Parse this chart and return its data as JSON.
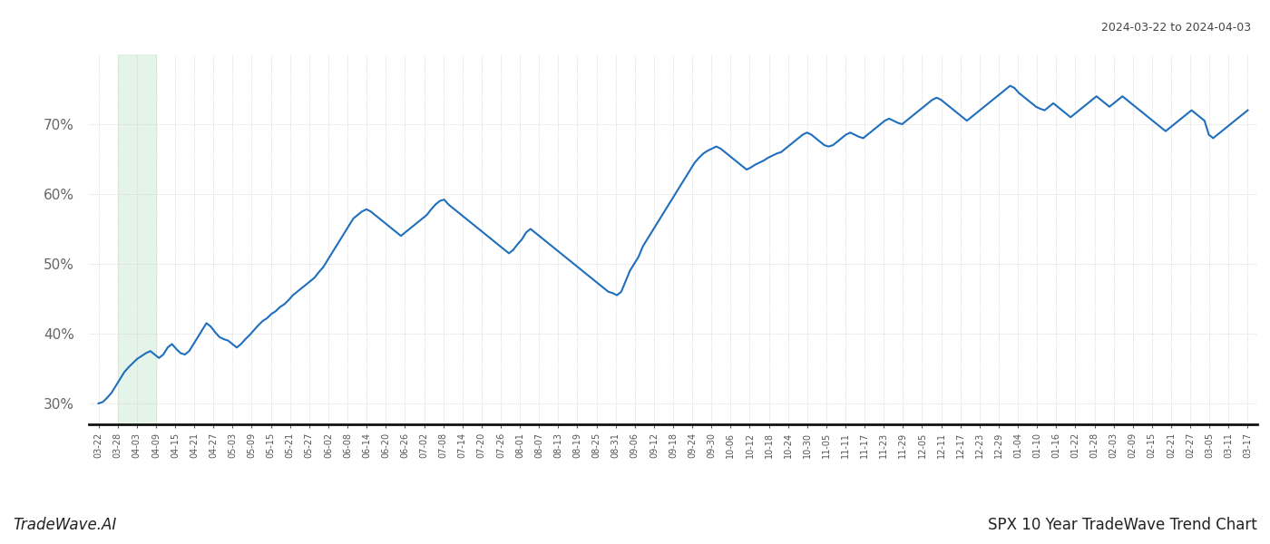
{
  "title_top_right": "2024-03-22 to 2024-04-03",
  "title_bottom_right": "SPX 10 Year TradeWave Trend Chart",
  "title_bottom_left": "TradeWave.AI",
  "line_color": "#1f6fbd",
  "line_width": 1.5,
  "highlight_color": "#d4edda",
  "highlight_alpha": 0.6,
  "background_color": "#ffffff",
  "grid_color": "#cccccc",
  "ylim": [
    27,
    80
  ],
  "yticks": [
    30,
    40,
    50,
    60,
    70
  ],
  "x_labels": [
    "03-22",
    "03-28",
    "04-03",
    "04-09",
    "04-15",
    "04-21",
    "04-27",
    "05-03",
    "05-09",
    "05-15",
    "05-21",
    "05-27",
    "06-02",
    "06-08",
    "06-14",
    "06-20",
    "06-26",
    "07-02",
    "07-08",
    "07-14",
    "07-20",
    "07-26",
    "08-01",
    "08-07",
    "08-13",
    "08-19",
    "08-25",
    "08-31",
    "09-06",
    "09-12",
    "09-18",
    "09-24",
    "09-30",
    "10-06",
    "10-12",
    "10-18",
    "10-24",
    "10-30",
    "11-05",
    "11-11",
    "11-17",
    "11-23",
    "11-29",
    "12-05",
    "12-11",
    "12-17",
    "12-23",
    "12-29",
    "01-04",
    "01-10",
    "01-16",
    "01-22",
    "01-28",
    "02-03",
    "02-09",
    "02-15",
    "02-21",
    "02-27",
    "03-05",
    "03-11",
    "03-17"
  ],
  "y_values": [
    30.0,
    30.2,
    30.8,
    31.5,
    32.5,
    33.5,
    34.5,
    35.2,
    35.8,
    36.4,
    36.8,
    37.2,
    37.5,
    37.0,
    36.5,
    37.0,
    38.0,
    38.5,
    37.8,
    37.2,
    37.0,
    37.5,
    38.5,
    39.5,
    40.5,
    41.5,
    41.0,
    40.2,
    39.5,
    39.2,
    39.0,
    38.5,
    38.0,
    38.5,
    39.2,
    39.8,
    40.5,
    41.2,
    41.8,
    42.2,
    42.8,
    43.2,
    43.8,
    44.2,
    44.8,
    45.5,
    46.0,
    46.5,
    47.0,
    47.5,
    48.0,
    48.8,
    49.5,
    50.5,
    51.5,
    52.5,
    53.5,
    54.5,
    55.5,
    56.5,
    57.0,
    57.5,
    57.8,
    57.5,
    57.0,
    56.5,
    56.0,
    55.5,
    55.0,
    54.5,
    54.0,
    54.5,
    55.0,
    55.5,
    56.0,
    56.5,
    57.0,
    57.8,
    58.5,
    59.0,
    59.2,
    58.5,
    58.0,
    57.5,
    57.0,
    56.5,
    56.0,
    55.5,
    55.0,
    54.5,
    54.0,
    53.5,
    53.0,
    52.5,
    52.0,
    51.5,
    52.0,
    52.8,
    53.5,
    54.5,
    55.0,
    54.5,
    54.0,
    53.5,
    53.0,
    52.5,
    52.0,
    51.5,
    51.0,
    50.5,
    50.0,
    49.5,
    49.0,
    48.5,
    48.0,
    47.5,
    47.0,
    46.5,
    46.0,
    45.8,
    45.5,
    46.0,
    47.5,
    49.0,
    50.0,
    51.0,
    52.5,
    53.5,
    54.5,
    55.5,
    56.5,
    57.5,
    58.5,
    59.5,
    60.5,
    61.5,
    62.5,
    63.5,
    64.5,
    65.2,
    65.8,
    66.2,
    66.5,
    66.8,
    66.5,
    66.0,
    65.5,
    65.0,
    64.5,
    64.0,
    63.5,
    63.8,
    64.2,
    64.5,
    64.8,
    65.2,
    65.5,
    65.8,
    66.0,
    66.5,
    67.0,
    67.5,
    68.0,
    68.5,
    68.8,
    68.5,
    68.0,
    67.5,
    67.0,
    66.8,
    67.0,
    67.5,
    68.0,
    68.5,
    68.8,
    68.5,
    68.2,
    68.0,
    68.5,
    69.0,
    69.5,
    70.0,
    70.5,
    70.8,
    70.5,
    70.2,
    70.0,
    70.5,
    71.0,
    71.5,
    72.0,
    72.5,
    73.0,
    73.5,
    73.8,
    73.5,
    73.0,
    72.5,
    72.0,
    71.5,
    71.0,
    70.5,
    71.0,
    71.5,
    72.0,
    72.5,
    73.0,
    73.5,
    74.0,
    74.5,
    75.0,
    75.5,
    75.2,
    74.5,
    74.0,
    73.5,
    73.0,
    72.5,
    72.2,
    72.0,
    72.5,
    73.0,
    72.5,
    72.0,
    71.5,
    71.0,
    71.5,
    72.0,
    72.5,
    73.0,
    73.5,
    74.0,
    73.5,
    73.0,
    72.5,
    73.0,
    73.5,
    74.0,
    73.5,
    73.0,
    72.5,
    72.0,
    71.5,
    71.0,
    70.5,
    70.0,
    69.5,
    69.0,
    69.5,
    70.0,
    70.5,
    71.0,
    71.5,
    72.0,
    71.5,
    71.0,
    70.5,
    68.5,
    68.0,
    68.5,
    69.0,
    69.5,
    70.0,
    70.5,
    71.0,
    71.5,
    72.0
  ],
  "highlight_x_start_label": "03-28",
  "highlight_x_end_label": "04-09"
}
